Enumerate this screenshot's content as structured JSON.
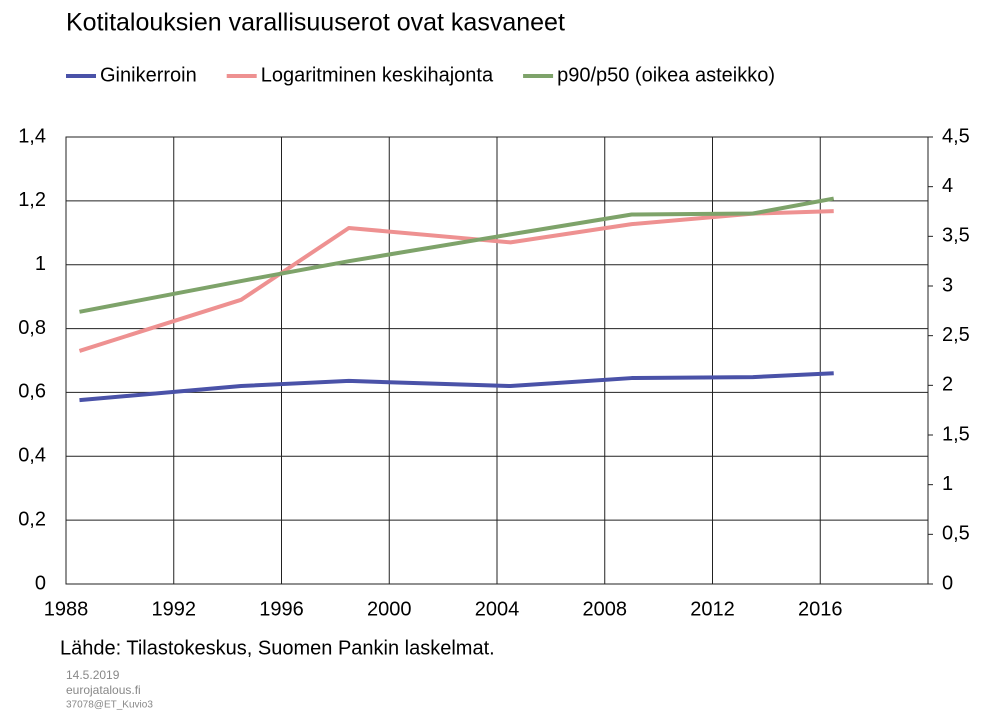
{
  "chart_data": {
    "type": "line",
    "title": "Kotitalouksien varallisuuserot ovat kasvaneet",
    "source": "Lähde: Tilastokeskus, Suomen Pankin laskelmat.",
    "footer": [
      "14.5.2019",
      "eurojatalous.fi",
      "37078@ET_Kuvio3"
    ],
    "x": [
      1988.5,
      1994.5,
      1998.5,
      2004.5,
      2009,
      2013.5,
      2016.5
    ],
    "series": [
      {
        "name": "Ginikerroin",
        "color": "#4a52a8",
        "values": [
          0.576,
          0.62,
          0.636,
          0.62,
          0.645,
          0.648,
          0.66
        ]
      },
      {
        "name": "Logaritminen keskihajonta",
        "color": "#ee9191",
        "values": [
          0.73,
          0.89,
          1.115,
          1.07,
          1.127,
          1.16,
          1.168
        ]
      },
      {
        "name": "p90/p50 (oikea asteikko)",
        "color": "#7ea36a",
        "axis": "y2",
        "values": [
          2.74,
          3.05,
          3.25,
          3.52,
          3.72,
          3.73,
          3.88
        ]
      }
    ],
    "xlim": [
      1988,
      2020
    ],
    "xticks": [
      1988,
      1992,
      1996,
      2000,
      2004,
      2008,
      2012,
      2016
    ],
    "ylim": [
      0,
      1.4
    ],
    "yticks": [
      0,
      {
        "value": 0.2,
        "label": "0,2"
      },
      {
        "value": 0.4,
        "label": "0,4"
      },
      {
        "value": 0.6,
        "label": "0,6"
      },
      {
        "value": 0.8,
        "label": "0,8"
      },
      1,
      {
        "value": 1.2,
        "label": "1,2"
      },
      {
        "value": 1.4,
        "label": "1,4"
      }
    ],
    "y2lim": [
      0,
      4.5
    ],
    "y2ticks": [
      0,
      {
        "value": 0.5,
        "label": "0,5"
      },
      1,
      {
        "value": 1.5,
        "label": "1,5"
      },
      2,
      {
        "value": 2.5,
        "label": "2,5"
      },
      3,
      {
        "value": 3.5,
        "label": "3,5"
      },
      4,
      {
        "value": 4.5,
        "label": "4,5"
      }
    ],
    "grid": true,
    "legend": "top"
  }
}
